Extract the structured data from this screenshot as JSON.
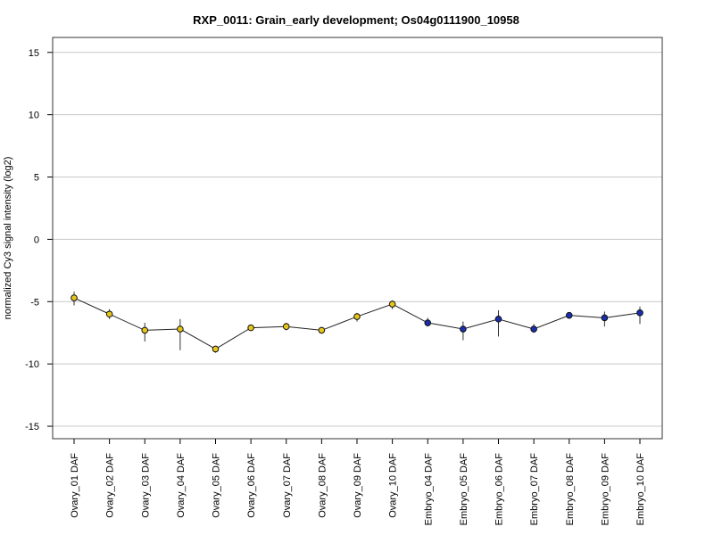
{
  "chart_data": {
    "type": "line",
    "title": "RXP_0011: Grain_early development; Os04g0111900_10958",
    "xlabel": "",
    "ylabel": "normalized Cy3 signal intensity (log2)",
    "ylim": [
      -16,
      16.2
    ],
    "yticks": [
      -15,
      -10,
      -5,
      0,
      5,
      10,
      15
    ],
    "grid": "horizontal",
    "categories": [
      "Ovary_01 DAF",
      "Ovary_02 DAF",
      "Ovary_03 DAF",
      "Ovary_04 DAF",
      "Ovary_05 DAF",
      "Ovary_06 DAF",
      "Ovary_07 DAF",
      "Ovary_08 DAF",
      "Ovary_09 DAF",
      "Ovary_10 DAF",
      "Embryo_04 DAF",
      "Embryo_05 DAF",
      "Embryo_06 DAF",
      "Embryo_07 DAF",
      "Embryo_08 DAF",
      "Embryo_09 DAF",
      "Embryo_10 DAF"
    ],
    "series": [
      {
        "values": [
          -4.7,
          -6.0,
          -7.3,
          -7.2,
          -8.8,
          -7.1,
          -7.0,
          -7.3,
          -6.2,
          -5.2,
          -6.7,
          -7.2,
          -6.4,
          -7.2,
          -6.1,
          -6.3,
          -5.9
        ],
        "err_low": [
          -5.3,
          -6.4,
          -8.2,
          -8.9,
          -9.1,
          -7.3,
          -7.3,
          -7.5,
          -6.6,
          -5.6,
          -7.0,
          -8.1,
          -7.8,
          -7.5,
          -6.2,
          -7.0,
          -6.8
        ],
        "err_high": [
          -4.2,
          -5.6,
          -6.7,
          -6.4,
          -8.6,
          -6.9,
          -6.7,
          -7.1,
          -5.9,
          -4.9,
          -6.3,
          -6.6,
          -5.7,
          -6.8,
          -6.0,
          -5.8,
          -5.4
        ],
        "marker_colors": [
          "#e6c619",
          "#e6c619",
          "#e6c619",
          "#e6c619",
          "#e6c619",
          "#e6c619",
          "#e6c619",
          "#e6c619",
          "#e6c619",
          "#e6c619",
          "#1a2fb0",
          "#1a2fb0",
          "#1a2fb0",
          "#1a2fb0",
          "#1a2fb0",
          "#1a2fb0",
          "#1a2fb0"
        ]
      }
    ],
    "colors": {
      "line": "#222222",
      "gridline": "#c8c8c8",
      "ovary_marker": "#e6c619",
      "embryo_marker": "#1a2fb0"
    }
  }
}
